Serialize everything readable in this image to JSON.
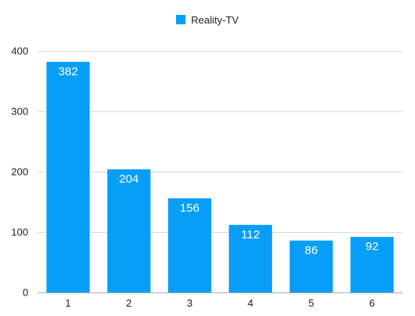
{
  "chart_data": {
    "type": "bar",
    "title": "",
    "xlabel": "",
    "ylabel": "",
    "categories": [
      "1",
      "2",
      "3",
      "4",
      "5",
      "6"
    ],
    "series": [
      {
        "name": "Reality-TV",
        "color": "#069ef6",
        "values": [
          382,
          204,
          156,
          112,
          86,
          92
        ]
      }
    ],
    "ylim": [
      0,
      400
    ],
    "yticks": [
      0,
      100,
      200,
      300,
      400
    ],
    "grid": true,
    "legend_position": "top-center",
    "data_labels": true
  }
}
